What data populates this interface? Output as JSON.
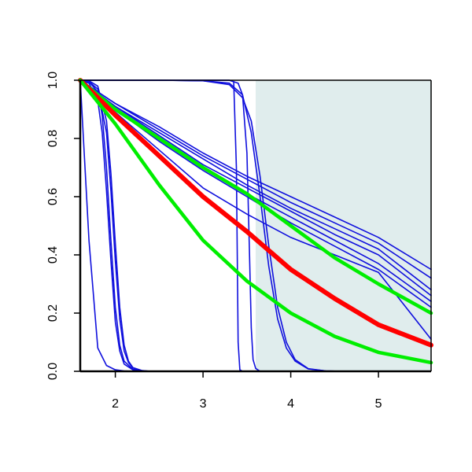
{
  "chart_data": {
    "type": "line",
    "title": "",
    "xlabel": "",
    "ylabel": "",
    "xlim": [
      1.6,
      5.6
    ],
    "ylim": [
      0.0,
      1.0
    ],
    "xticks": [
      2,
      3,
      4,
      5
    ],
    "yticks": [
      0.0,
      0.2,
      0.4,
      0.6,
      0.8,
      1.0
    ],
    "xtick_labels": [
      "2",
      "3",
      "4",
      "5"
    ],
    "ytick_labels": [
      "0.0",
      "0.2",
      "0.4",
      "0.6",
      "0.8",
      "1.0"
    ],
    "shaded_region": {
      "x_from": 3.6,
      "x_to": 5.6,
      "color": "#e0eded"
    },
    "grid": false,
    "legend": "none",
    "colors": {
      "blue": "#1010dd",
      "red": "#ff0000",
      "green": "#00ee00",
      "axis": "#000000"
    },
    "series": [
      {
        "color": "blue",
        "width": 1.6,
        "x": [
          1.6,
          1.7,
          1.8,
          1.9,
          2.0,
          2.1,
          2.2
        ],
        "y": [
          1.0,
          0.45,
          0.08,
          0.02,
          0.005,
          0.001,
          0.0
        ]
      },
      {
        "color": "blue",
        "width": 1.6,
        "x": [
          1.6,
          1.7,
          1.8,
          1.85,
          1.9,
          1.95,
          2.0,
          2.05,
          2.1,
          2.2,
          2.3,
          2.4,
          2.6
        ],
        "y": [
          1.0,
          0.99,
          0.93,
          0.82,
          0.62,
          0.38,
          0.17,
          0.07,
          0.025,
          0.005,
          0.001,
          0.0,
          0.0
        ]
      },
      {
        "color": "blue",
        "width": 1.6,
        "x": [
          1.6,
          1.7,
          1.8,
          1.85,
          1.9,
          1.95,
          2.0,
          2.05,
          2.1,
          2.2,
          2.3,
          2.4,
          2.6
        ],
        "y": [
          1.0,
          0.995,
          0.96,
          0.88,
          0.7,
          0.45,
          0.22,
          0.09,
          0.035,
          0.007,
          0.002,
          0.0,
          0.0
        ]
      },
      {
        "color": "blue",
        "width": 1.6,
        "x": [
          1.6,
          1.7,
          1.8,
          1.9,
          1.95,
          2.0,
          2.05,
          2.1,
          2.15,
          2.2,
          2.3,
          2.4,
          2.6
        ],
        "y": [
          1.0,
          0.995,
          0.97,
          0.82,
          0.62,
          0.38,
          0.18,
          0.07,
          0.03,
          0.012,
          0.002,
          0.0,
          0.0
        ]
      },
      {
        "color": "blue",
        "width": 1.6,
        "x": [
          1.6,
          1.7,
          1.8,
          1.9,
          1.95,
          2.0,
          2.05,
          2.1,
          2.15,
          2.2,
          2.3,
          2.4,
          2.6
        ],
        "y": [
          1.0,
          0.998,
          0.98,
          0.86,
          0.68,
          0.44,
          0.22,
          0.09,
          0.035,
          0.013,
          0.003,
          0.0,
          0.0
        ]
      },
      {
        "color": "blue",
        "width": 1.6,
        "x": [
          1.6,
          2.0,
          2.5,
          3.0,
          3.3,
          3.35,
          3.38,
          3.4,
          3.42,
          3.45,
          3.5,
          3.6
        ],
        "y": [
          1.0,
          1.0,
          1.0,
          1.0,
          1.0,
          0.995,
          0.7,
          0.1,
          0.005,
          0.0,
          0.0,
          0.0
        ]
      },
      {
        "color": "blue",
        "width": 1.6,
        "x": [
          1.6,
          2.0,
          2.5,
          3.0,
          3.3,
          3.4,
          3.45,
          3.5,
          3.53,
          3.55,
          3.57,
          3.6,
          3.65,
          3.7
        ],
        "y": [
          1.0,
          1.0,
          1.0,
          1.0,
          1.0,
          0.99,
          0.95,
          0.75,
          0.4,
          0.15,
          0.04,
          0.01,
          0.0,
          0.0
        ]
      },
      {
        "color": "blue",
        "width": 1.6,
        "x": [
          1.6,
          2.0,
          2.5,
          3.0,
          3.3,
          3.45,
          3.55,
          3.65,
          3.75,
          3.85,
          3.95,
          4.05,
          4.2,
          4.4,
          4.6
        ],
        "y": [
          1.0,
          1.0,
          1.0,
          0.998,
          0.99,
          0.95,
          0.82,
          0.6,
          0.36,
          0.18,
          0.08,
          0.035,
          0.008,
          0.001,
          0.0
        ]
      },
      {
        "color": "blue",
        "width": 1.6,
        "x": [
          1.6,
          2.0,
          2.5,
          3.0,
          3.3,
          3.45,
          3.55,
          3.65,
          3.75,
          3.85,
          3.95,
          4.05,
          4.2,
          4.4,
          4.6
        ],
        "y": [
          1.0,
          1.0,
          1.0,
          0.998,
          0.985,
          0.94,
          0.86,
          0.67,
          0.43,
          0.22,
          0.1,
          0.04,
          0.009,
          0.001,
          0.0
        ]
      },
      {
        "color": "blue",
        "width": 1.6,
        "x": [
          1.6,
          2.0,
          2.5,
          3.0,
          3.5,
          4.0,
          4.5,
          5.0,
          5.6
        ],
        "y": [
          1.0,
          0.89,
          0.76,
          0.63,
          0.54,
          0.46,
          0.4,
          0.34,
          0.11
        ]
      },
      {
        "color": "blue",
        "width": 1.6,
        "x": [
          1.6,
          2.0,
          2.5,
          3.0,
          3.5,
          4.0,
          4.5,
          5.0,
          5.6
        ],
        "y": [
          1.0,
          0.9,
          0.79,
          0.69,
          0.6,
          0.51,
          0.43,
          0.35,
          0.22
        ]
      },
      {
        "color": "blue",
        "width": 1.6,
        "x": [
          1.6,
          2.0,
          2.5,
          3.0,
          3.5,
          4.0,
          4.5,
          5.0,
          5.6
        ],
        "y": [
          1.0,
          0.9,
          0.8,
          0.7,
          0.61,
          0.53,
          0.45,
          0.37,
          0.24
        ]
      },
      {
        "color": "blue",
        "width": 1.6,
        "x": [
          1.6,
          2.0,
          2.5,
          3.0,
          3.5,
          4.0,
          4.5,
          5.0,
          5.6
        ],
        "y": [
          1.0,
          0.91,
          0.81,
          0.71,
          0.63,
          0.55,
          0.47,
          0.4,
          0.26
        ]
      },
      {
        "color": "blue",
        "width": 1.6,
        "x": [
          1.6,
          2.0,
          2.5,
          3.0,
          3.5,
          4.0,
          4.5,
          5.0,
          5.6
        ],
        "y": [
          1.0,
          0.91,
          0.82,
          0.73,
          0.64,
          0.56,
          0.49,
          0.42,
          0.28
        ]
      },
      {
        "color": "blue",
        "width": 1.6,
        "x": [
          1.6,
          2.0,
          2.5,
          3.0,
          3.5,
          4.0,
          4.5,
          5.0,
          5.6
        ],
        "y": [
          1.0,
          0.92,
          0.83,
          0.74,
          0.66,
          0.58,
          0.51,
          0.44,
          0.32
        ]
      },
      {
        "color": "blue",
        "width": 1.6,
        "x": [
          1.6,
          2.0,
          2.5,
          3.0,
          3.5,
          4.0,
          4.5,
          5.0,
          5.6
        ],
        "y": [
          1.0,
          0.92,
          0.84,
          0.75,
          0.67,
          0.6,
          0.53,
          0.46,
          0.35
        ]
      },
      {
        "color": "green",
        "width": 4.5,
        "x": [
          1.6,
          2.0,
          2.5,
          3.0,
          3.5,
          4.0,
          4.5,
          5.0,
          5.6
        ],
        "y": [
          1.0,
          0.9,
          0.8,
          0.7,
          0.61,
          0.5,
          0.39,
          0.3,
          0.2
        ]
      },
      {
        "color": "red",
        "width": 6,
        "x": [
          1.6,
          2.0,
          2.5,
          3.0,
          3.5,
          4.0,
          4.5,
          5.0,
          5.6
        ],
        "y": [
          1.0,
          0.88,
          0.74,
          0.6,
          0.48,
          0.35,
          0.25,
          0.16,
          0.09
        ]
      },
      {
        "color": "green",
        "width": 4.5,
        "x": [
          1.6,
          2.0,
          2.5,
          3.0,
          3.5,
          4.0,
          4.5,
          5.0,
          5.6
        ],
        "y": [
          1.0,
          0.85,
          0.64,
          0.45,
          0.31,
          0.2,
          0.12,
          0.065,
          0.03
        ]
      }
    ]
  }
}
